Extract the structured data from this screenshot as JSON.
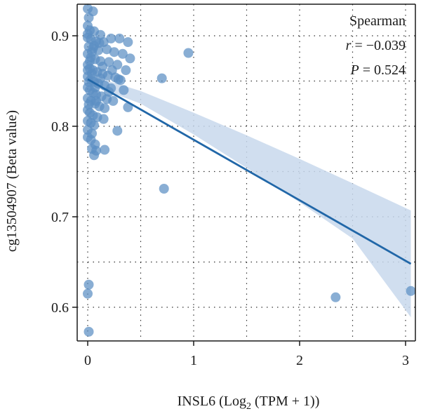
{
  "chart_data": {
    "type": "scatter",
    "xlabel_main": "INSL6 (Log",
    "xlabel_sub": "2",
    "xlabel_tail": " (TPM + 1))",
    "ylabel": "cg13504907 (Beta value)",
    "xlim": [
      -0.1,
      3.08
    ],
    "ylim": [
      0.562,
      0.935
    ],
    "x_ticks": [
      0,
      1,
      2,
      3
    ],
    "x_tick_labels": [
      "0",
      "1",
      "2",
      "3"
    ],
    "y_ticks": [
      0.6,
      0.7,
      0.8,
      0.9
    ],
    "y_tick_labels": [
      "0.6",
      "0.7",
      "0.8",
      "0.9"
    ],
    "grid": "dotted",
    "colors": {
      "point": "#5b8fc4",
      "line": "#2167a8",
      "band": "#c8d8ec",
      "axis": "#1a1a1a"
    },
    "annotation": {
      "method": "Spearman",
      "r_label": "r",
      "r_value": " = −0.039",
      "p_label": "P",
      "p_value": " = 0.524"
    },
    "regression": {
      "x": [
        0,
        3.05
      ],
      "y": [
        0.852,
        0.648
      ],
      "ci_upper_x": [
        0,
        0.5,
        1.0,
        1.5,
        2.0,
        2.5,
        3.05
      ],
      "ci_upper_y": [
        0.857,
        0.839,
        0.815,
        0.79,
        0.764,
        0.737,
        0.707
      ],
      "ci_lower_x": [
        0,
        0.5,
        1.0,
        1.5,
        2.0,
        2.5,
        3.05
      ],
      "ci_lower_y": [
        0.847,
        0.825,
        0.791,
        0.754,
        0.716,
        0.676,
        0.589
      ]
    },
    "points": [
      {
        "x": 0.0,
        "y": 0.93
      },
      {
        "x": 0.05,
        "y": 0.927
      },
      {
        "x": 0.01,
        "y": 0.92
      },
      {
        "x": 0.0,
        "y": 0.911
      },
      {
        "x": 0.02,
        "y": 0.906
      },
      {
        "x": 0.06,
        "y": 0.905
      },
      {
        "x": 0.12,
        "y": 0.901
      },
      {
        "x": 0.0,
        "y": 0.898
      },
      {
        "x": 0.03,
        "y": 0.896
      },
      {
        "x": 0.08,
        "y": 0.894
      },
      {
        "x": 0.15,
        "y": 0.893
      },
      {
        "x": 0.22,
        "y": 0.897
      },
      {
        "x": 0.3,
        "y": 0.897
      },
      {
        "x": 0.38,
        "y": 0.893
      },
      {
        "x": 0.01,
        "y": 0.888
      },
      {
        "x": 0.05,
        "y": 0.886
      },
      {
        "x": 0.1,
        "y": 0.884
      },
      {
        "x": 0.18,
        "y": 0.885
      },
      {
        "x": 0.25,
        "y": 0.882
      },
      {
        "x": 0.33,
        "y": 0.88
      },
      {
        "x": 0.4,
        "y": 0.875
      },
      {
        "x": 0.0,
        "y": 0.88
      },
      {
        "x": 0.03,
        "y": 0.876
      },
      {
        "x": 0.07,
        "y": 0.874
      },
      {
        "x": 0.12,
        "y": 0.872
      },
      {
        "x": 0.2,
        "y": 0.871
      },
      {
        "x": 0.28,
        "y": 0.868
      },
      {
        "x": 0.36,
        "y": 0.862
      },
      {
        "x": 0.0,
        "y": 0.868
      },
      {
        "x": 0.02,
        "y": 0.864
      },
      {
        "x": 0.05,
        "y": 0.862
      },
      {
        "x": 0.09,
        "y": 0.86
      },
      {
        "x": 0.14,
        "y": 0.858
      },
      {
        "x": 0.19,
        "y": 0.856
      },
      {
        "x": 0.26,
        "y": 0.854
      },
      {
        "x": 0.31,
        "y": 0.851
      },
      {
        "x": 0.0,
        "y": 0.855
      },
      {
        "x": 0.03,
        "y": 0.852
      },
      {
        "x": 0.06,
        "y": 0.849
      },
      {
        "x": 0.1,
        "y": 0.847
      },
      {
        "x": 0.16,
        "y": 0.845
      },
      {
        "x": 0.22,
        "y": 0.842
      },
      {
        "x": 0.34,
        "y": 0.84
      },
      {
        "x": 0.0,
        "y": 0.843
      },
      {
        "x": 0.02,
        "y": 0.84
      },
      {
        "x": 0.05,
        "y": 0.837
      },
      {
        "x": 0.08,
        "y": 0.835
      },
      {
        "x": 0.13,
        "y": 0.833
      },
      {
        "x": 0.18,
        "y": 0.83
      },
      {
        "x": 0.24,
        "y": 0.828
      },
      {
        "x": 0.0,
        "y": 0.831
      },
      {
        "x": 0.03,
        "y": 0.828
      },
      {
        "x": 0.07,
        "y": 0.825
      },
      {
        "x": 0.11,
        "y": 0.822
      },
      {
        "x": 0.16,
        "y": 0.82
      },
      {
        "x": 0.38,
        "y": 0.821
      },
      {
        "x": 0.0,
        "y": 0.818
      },
      {
        "x": 0.02,
        "y": 0.815
      },
      {
        "x": 0.05,
        "y": 0.812
      },
      {
        "x": 0.09,
        "y": 0.81
      },
      {
        "x": 0.15,
        "y": 0.808
      },
      {
        "x": 0.0,
        "y": 0.806
      },
      {
        "x": 0.03,
        "y": 0.804
      },
      {
        "x": 0.06,
        "y": 0.801
      },
      {
        "x": 0.0,
        "y": 0.796
      },
      {
        "x": 0.04,
        "y": 0.792
      },
      {
        "x": 0.28,
        "y": 0.795
      },
      {
        "x": 0.0,
        "y": 0.788
      },
      {
        "x": 0.03,
        "y": 0.785
      },
      {
        "x": 0.07,
        "y": 0.78
      },
      {
        "x": 0.04,
        "y": 0.775
      },
      {
        "x": 0.08,
        "y": 0.773
      },
      {
        "x": 0.16,
        "y": 0.774
      },
      {
        "x": 0.06,
        "y": 0.768
      },
      {
        "x": 0.02,
        "y": 0.872
      },
      {
        "x": 0.04,
        "y": 0.858
      },
      {
        "x": 0.0,
        "y": 0.862
      },
      {
        "x": 0.01,
        "y": 0.849
      },
      {
        "x": 0.04,
        "y": 0.882
      },
      {
        "x": 0.11,
        "y": 0.892
      },
      {
        "x": 0.14,
        "y": 0.866
      },
      {
        "x": 0.2,
        "y": 0.838
      },
      {
        "x": 0.08,
        "y": 0.828
      },
      {
        "x": 0.01,
        "y": 0.824
      },
      {
        "x": 0.29,
        "y": 0.852
      },
      {
        "x": 0.23,
        "y": 0.862
      },
      {
        "x": 0.07,
        "y": 0.843
      },
      {
        "x": 0.12,
        "y": 0.853
      },
      {
        "x": 0.0,
        "y": 0.902
      },
      {
        "x": 0.06,
        "y": 0.889
      },
      {
        "x": 0.95,
        "y": 0.881
      },
      {
        "x": 0.7,
        "y": 0.853
      },
      {
        "x": 0.72,
        "y": 0.731
      },
      {
        "x": 2.34,
        "y": 0.611
      },
      {
        "x": 3.05,
        "y": 0.618
      },
      {
        "x": 0.01,
        "y": 0.625
      },
      {
        "x": 0.0,
        "y": 0.615
      },
      {
        "x": 0.01,
        "y": 0.573
      }
    ]
  }
}
